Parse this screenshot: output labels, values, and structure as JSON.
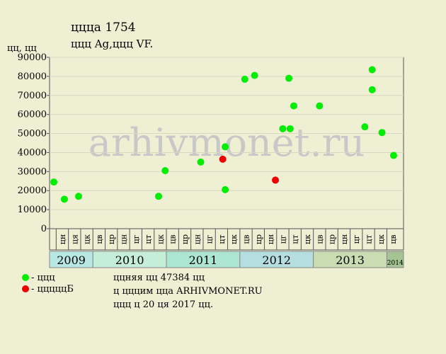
{
  "chart_data": {
    "type": "scatter",
    "title": "ццца 1754",
    "subtitle": "ццц Ag,ццц VF.",
    "y_label": "цц, цц",
    "watermark": "arhivmonet.ru",
    "ylim": [
      0,
      90000
    ],
    "yticks": [
      0,
      10000,
      20000,
      30000,
      40000,
      50000,
      60000,
      70000,
      80000,
      90000
    ],
    "xlim": [
      -1.04,
      27.86
    ],
    "categories": [
      "цн",
      "ця",
      "цк",
      "цв",
      "цр",
      "цн",
      "цг",
      "цт",
      "цк",
      "цв",
      "цр",
      "цн",
      "цг",
      "цт",
      "цк",
      "цв",
      "цр",
      "цн",
      "цг",
      "цт",
      "цк",
      "цв",
      "цр",
      "цн",
      "цг",
      "цт",
      "цк",
      "цв"
    ],
    "years": [
      {
        "label": "2009",
        "color": "#b8e8e4"
      },
      {
        "label": "2010",
        "color": "#c4eed8"
      },
      {
        "label": "2011",
        "color": "#ace6d2"
      },
      {
        "label": "2012",
        "color": "#b4dee0"
      },
      {
        "label": "2013",
        "color": "#cadcb2"
      },
      {
        "label": "2014",
        "color": "#a4c494"
      }
    ],
    "grid": true,
    "series": [
      {
        "name": "- ццц",
        "color": "#00ee00",
        "x": [
          -0.69,
          0.17,
          1.33,
          7.86,
          8.4,
          11.3,
          13.3,
          13.3,
          14.9,
          15.7,
          18.0,
          18.5,
          18.6,
          18.9,
          21.0,
          24.7,
          25.3,
          25.3,
          26.1,
          27.05
        ],
        "values": [
          24500,
          15500,
          17000,
          17000,
          30500,
          35000,
          43000,
          20500,
          78500,
          80500,
          52500,
          79000,
          52500,
          64500,
          64500,
          53500,
          83500,
          73000,
          50500,
          38500
        ]
      },
      {
        "name": "- цццццБ",
        "color": "#ee0000",
        "x": [
          13.1,
          17.4
        ],
        "values": [
          36500,
          25500
        ]
      }
    ],
    "notes": [
      "ццняя цц 47384 цц",
      "ц цццим ццa ARHIVMONET.RU",
      "ццц ц 20 ця 2017 цц."
    ]
  }
}
